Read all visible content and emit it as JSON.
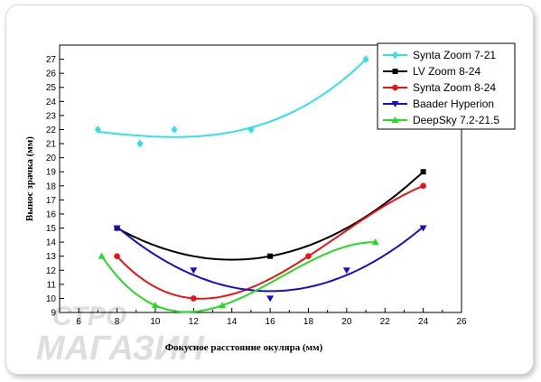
{
  "watermark": {
    "top": "СТРО",
    "bottom": "МАГАЗИН"
  },
  "chart_data": {
    "type": "line",
    "title": "",
    "xlabel": "Фокусное расстояние окуляра (мм)",
    "ylabel": "Вынос зрачка (мм)",
    "xlim": [
      5,
      26
    ],
    "ylim": [
      9,
      28
    ],
    "xticks": [
      6,
      8,
      10,
      12,
      14,
      16,
      18,
      20,
      22,
      24,
      26
    ],
    "yticks": [
      9,
      10,
      11,
      12,
      13,
      14,
      15,
      16,
      17,
      18,
      19,
      20,
      21,
      22,
      23,
      24,
      25,
      26,
      27
    ],
    "legend_position": "top-right",
    "series": [
      {
        "name": "Synta Zoom 7-21",
        "color": "#33e0e6",
        "marker": "diamond",
        "points": [
          [
            7,
            22
          ],
          [
            9.2,
            21
          ],
          [
            11,
            22
          ],
          [
            15,
            22
          ],
          [
            21,
            27
          ]
        ]
      },
      {
        "name": "LV Zoom 8-24",
        "color": "#000000",
        "marker": "square",
        "points": [
          [
            8,
            15
          ],
          [
            16,
            13
          ],
          [
            24,
            19
          ]
        ]
      },
      {
        "name": "Synta Zoom 8-24",
        "color": "#ee1111",
        "marker": "circle",
        "points": [
          [
            8,
            13
          ],
          [
            12,
            10
          ],
          [
            18,
            13
          ],
          [
            24,
            18
          ]
        ]
      },
      {
        "name": "Baader Hyperion",
        "color": "#1111cc",
        "marker": "triangle-down",
        "points": [
          [
            8,
            15
          ],
          [
            12,
            12
          ],
          [
            16,
            10
          ],
          [
            20,
            12
          ],
          [
            24,
            15
          ]
        ]
      },
      {
        "name": "DeepSky 7.2-21.5",
        "color": "#22dd22",
        "marker": "triangle-up",
        "points": [
          [
            7.2,
            13
          ],
          [
            10,
            9.5
          ],
          [
            13.5,
            9.5
          ],
          [
            21.5,
            14
          ]
        ]
      }
    ]
  }
}
